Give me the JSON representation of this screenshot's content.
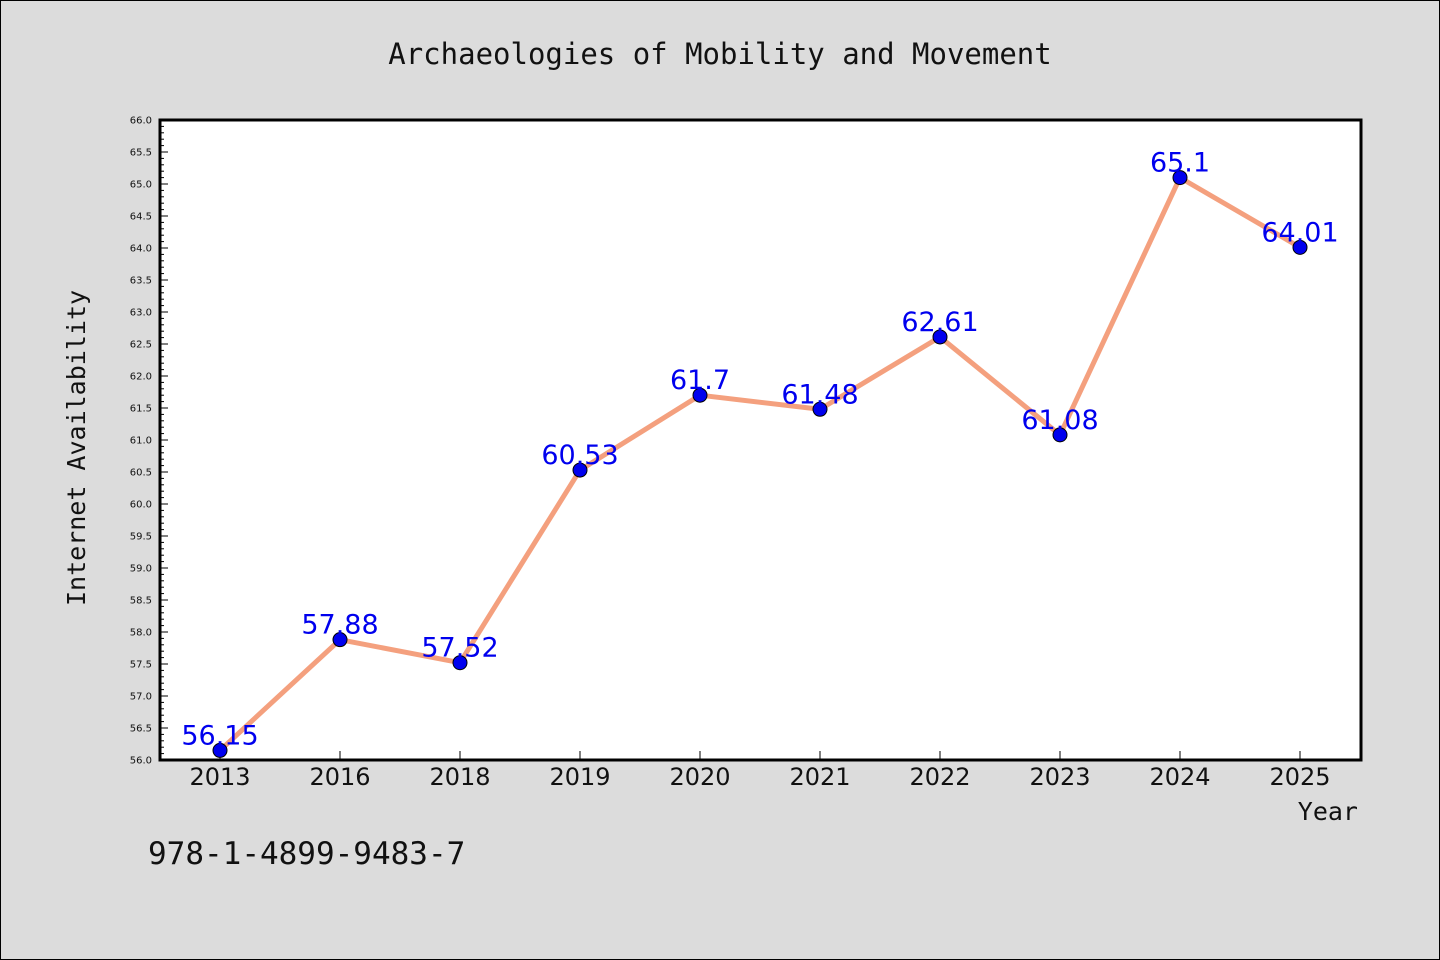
{
  "chart_data": {
    "type": "line",
    "title": "Archaeologies of Mobility and Movement",
    "xlabel": "Year",
    "ylabel": "Internet Availability",
    "categories": [
      "2013",
      "2016",
      "2018",
      "2019",
      "2020",
      "2021",
      "2022",
      "2023",
      "2024",
      "2025"
    ],
    "values": [
      56.15,
      57.88,
      57.52,
      60.53,
      61.7,
      61.48,
      62.61,
      61.08,
      65.1,
      64.01
    ],
    "data_labels": [
      "56.15",
      "57.88",
      "57.52",
      "60.53",
      "61.7",
      "61.48",
      "62.61",
      "61.08",
      "65.1",
      "64.01"
    ],
    "ylim": [
      56.0,
      66.0
    ],
    "yticks": [
      "56.0",
      "56.5",
      "57.0",
      "57.5",
      "58.0",
      "58.5",
      "59.0",
      "59.5",
      "60.0",
      "60.5",
      "61.0",
      "61.5",
      "62.0",
      "62.5",
      "63.0",
      "63.5",
      "64.0",
      "64.5",
      "65.0",
      "65.5",
      "66.0"
    ],
    "grid": false,
    "legend": "none",
    "line_color": "#f4a07e",
    "marker_color": "#0000ee",
    "label_color": "#0000ee"
  },
  "footer": {
    "isbn": "978-1-4899-9483-7"
  }
}
